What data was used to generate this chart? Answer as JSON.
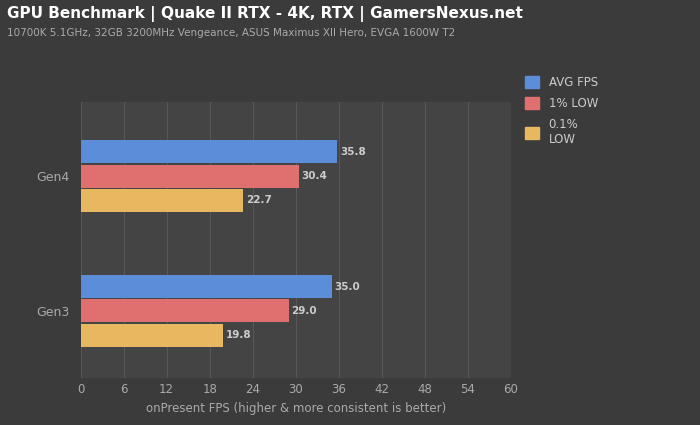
{
  "title": "GPU Benchmark | Quake II RTX - 4K, RTX | GamersNexus.net",
  "subtitle": "10700K 5.1GHz, 32GB 3200MHz Vengeance, ASUS Maximus XII Hero, EVGA 1600W T2",
  "xlabel": "onPresent FPS (higher & more consistent is better)",
  "categories": [
    "Gen4",
    "Gen3"
  ],
  "avg_fps": [
    35.8,
    35.0
  ],
  "one_pct_low": [
    30.4,
    29.0
  ],
  "point1_pct_low": [
    22.7,
    19.8
  ],
  "avg_color": "#5b8dd9",
  "one_pct_color": "#e07070",
  "point1_pct_color": "#e8b860",
  "bg_color": "#3b3b3b",
  "plot_bg_color": "#444444",
  "legend_bg_color": "#3b3b3b",
  "grid_color": "#595959",
  "text_color": "#cccccc",
  "label_color": "#aaaaaa",
  "xlim": [
    0,
    60
  ],
  "xticks": [
    0,
    6,
    12,
    18,
    24,
    30,
    36,
    42,
    48,
    54,
    60
  ],
  "bar_height": 0.18,
  "title_fontsize": 11,
  "subtitle_fontsize": 7.5,
  "legend_labels": [
    "AVG FPS",
    "1% LOW",
    "0.1%\nLOW"
  ]
}
